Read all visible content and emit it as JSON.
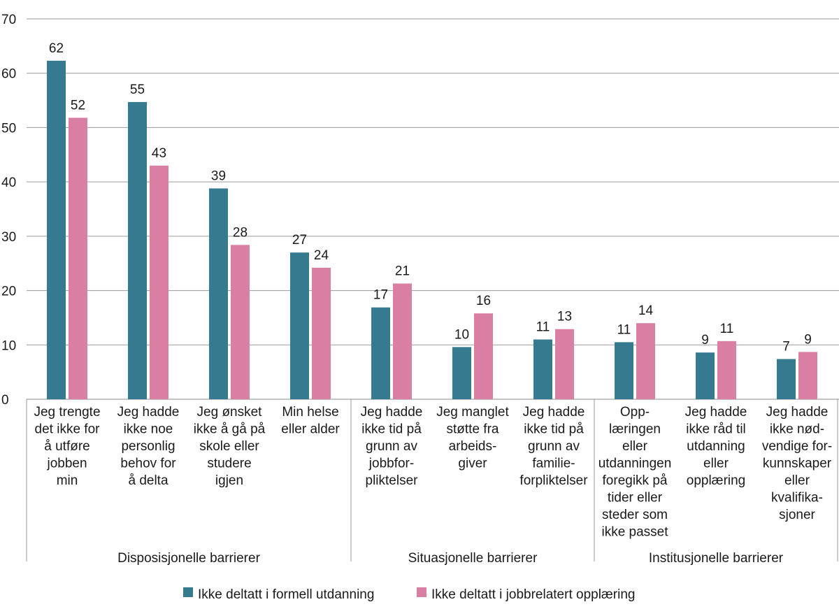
{
  "chart_data": {
    "type": "bar",
    "ylim": [
      0,
      70
    ],
    "yticks": [
      0,
      10,
      20,
      30,
      40,
      50,
      60,
      70
    ],
    "grid": true,
    "legend_position": "bottom",
    "categories": [
      [
        "Jeg trengte",
        "det ikke for",
        "å utføre",
        "jobben",
        "min"
      ],
      [
        "Jeg hadde",
        "ikke noe",
        "personlig",
        "behov for",
        "å delta"
      ],
      [
        "Jeg ønsket",
        "ikke å gå på",
        "skole eller",
        "studere",
        "igjen"
      ],
      [
        "Min helse",
        "eller alder"
      ],
      [
        "Jeg hadde",
        "ikke tid på",
        "grunn av",
        "jobbfor-",
        "pliktelser"
      ],
      [
        "Jeg manglet",
        "støtte fra",
        "arbeids-",
        "giver"
      ],
      [
        "Jeg hadde",
        "ikke tid på",
        "grunn av",
        "familie-",
        "forpliktelser"
      ],
      [
        "Opp-",
        "læringen",
        "eller",
        "utdanningen",
        "foregikk på",
        "tider eller",
        "steder som",
        "ikke passet"
      ],
      [
        "Jeg hadde",
        "ikke råd til",
        "utdanning",
        "eller",
        "opplæring"
      ],
      [
        "Jeg hadde",
        "ikke nød-",
        "vendige for-",
        "kunnskaper",
        "eller",
        "kvalifika-",
        "sjoner"
      ]
    ],
    "groups": [
      {
        "label": "Disposisjonelle barrierer",
        "start": 0,
        "end": 3
      },
      {
        "label": "Situasjonelle barrierer",
        "start": 4,
        "end": 6
      },
      {
        "label": "Institusjonelle barrierer",
        "start": 7,
        "end": 9
      }
    ],
    "series": [
      {
        "name": "Ikke deltatt i formell utdanning",
        "color": "#357a8f",
        "values": [
          62.3,
          54.7,
          38.8,
          27.0,
          16.9,
          9.6,
          11.0,
          10.5,
          8.6,
          7.4
        ],
        "labels": [
          "62",
          "55",
          "39",
          "27",
          "17",
          "10",
          "11",
          "11",
          "9",
          "7"
        ]
      },
      {
        "name": "Ikke deltatt i jobbrelatert opplæring",
        "color": "#d97fa3",
        "values": [
          51.8,
          43.0,
          28.4,
          24.2,
          21.3,
          15.8,
          12.9,
          14.0,
          10.7,
          8.7
        ],
        "labels": [
          "52",
          "43",
          "28",
          "24",
          "21",
          "16",
          "13",
          "14",
          "11",
          "9"
        ]
      }
    ]
  }
}
